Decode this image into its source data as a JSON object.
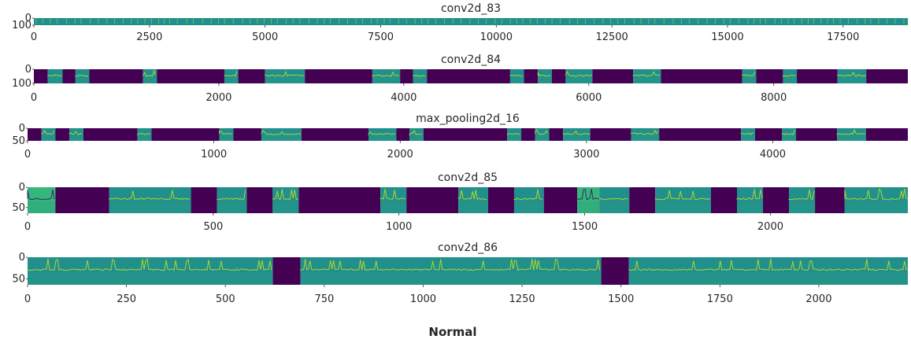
{
  "figure_label": "Normal",
  "colors": {
    "dark": "#440154",
    "teal": "#21908d",
    "green": "#35b779",
    "yellow": "#d6e62a",
    "text": "#262626"
  },
  "chart_data": [
    {
      "type": "heatmap",
      "title": "conv2d_83",
      "xlim": [
        0,
        18900
      ],
      "xticks": [
        0,
        2500,
        5000,
        7500,
        10000,
        12500,
        15000,
        17500
      ],
      "xtick_labels": [
        "0",
        "2500",
        "5000",
        "7500",
        "10000",
        "12500",
        "15000",
        "17500"
      ],
      "ylim": [
        100,
        0
      ],
      "yticks": [
        0,
        100
      ],
      "ytick_labels": [
        "0",
        "100"
      ],
      "segments": [
        [
          0,
          18900,
          "teal"
        ]
      ],
      "colormap": "viridis"
    },
    {
      "type": "heatmap",
      "title": "conv2d_84",
      "xlim": [
        0,
        9450
      ],
      "xticks": [
        0,
        2000,
        4000,
        6000,
        8000
      ],
      "xtick_labels": [
        "0",
        "2000",
        "4000",
        "6000",
        "8000"
      ],
      "ylim": [
        100,
        0
      ],
      "yticks": [
        0,
        100
      ],
      "ytick_labels": [
        "0",
        "100"
      ],
      "segments": [
        [
          0,
          150,
          "dark"
        ],
        [
          150,
          310,
          "teal"
        ],
        [
          310,
          450,
          "dark"
        ],
        [
          450,
          600,
          "teal"
        ],
        [
          600,
          1180,
          "dark"
        ],
        [
          1180,
          1330,
          "teal"
        ],
        [
          1330,
          2060,
          "dark"
        ],
        [
          2060,
          2210,
          "teal"
        ],
        [
          2210,
          2500,
          "dark"
        ],
        [
          2500,
          2930,
          "teal"
        ],
        [
          2930,
          3660,
          "dark"
        ],
        [
          3660,
          3960,
          "teal"
        ],
        [
          3960,
          4100,
          "dark"
        ],
        [
          4100,
          4250,
          "teal"
        ],
        [
          4250,
          5150,
          "dark"
        ],
        [
          5150,
          5300,
          "teal"
        ],
        [
          5300,
          5450,
          "dark"
        ],
        [
          5450,
          5600,
          "teal"
        ],
        [
          5600,
          5750,
          "dark"
        ],
        [
          5750,
          6040,
          "teal"
        ],
        [
          6040,
          6480,
          "dark"
        ],
        [
          6480,
          6780,
          "teal"
        ],
        [
          6780,
          7660,
          "dark"
        ],
        [
          7660,
          7810,
          "teal"
        ],
        [
          7810,
          8100,
          "dark"
        ],
        [
          8100,
          8250,
          "teal"
        ],
        [
          8250,
          8690,
          "dark"
        ],
        [
          8690,
          9000,
          "teal"
        ],
        [
          9000,
          9450,
          "dark"
        ]
      ],
      "colormap": "viridis"
    },
    {
      "type": "heatmap",
      "title": "max_pooling2d_16",
      "xlim": [
        0,
        4725
      ],
      "xticks": [
        0,
        1000,
        2000,
        3000,
        4000
      ],
      "xtick_labels": [
        "0",
        "1000",
        "2000",
        "3000",
        "4000"
      ],
      "ylim": [
        50,
        0
      ],
      "yticks": [
        0,
        50
      ],
      "ytick_labels": [
        "0",
        "50"
      ],
      "segments": [
        [
          0,
          75,
          "dark"
        ],
        [
          75,
          150,
          "teal"
        ],
        [
          150,
          225,
          "dark"
        ],
        [
          225,
          300,
          "teal"
        ],
        [
          300,
          590,
          "dark"
        ],
        [
          590,
          665,
          "teal"
        ],
        [
          665,
          1030,
          "dark"
        ],
        [
          1030,
          1105,
          "teal"
        ],
        [
          1105,
          1255,
          "dark"
        ],
        [
          1255,
          1470,
          "teal"
        ],
        [
          1470,
          1830,
          "dark"
        ],
        [
          1830,
          1980,
          "teal"
        ],
        [
          1980,
          2050,
          "dark"
        ],
        [
          2050,
          2125,
          "teal"
        ],
        [
          2125,
          2575,
          "dark"
        ],
        [
          2575,
          2650,
          "teal"
        ],
        [
          2650,
          2725,
          "dark"
        ],
        [
          2725,
          2800,
          "teal"
        ],
        [
          2800,
          2875,
          "dark"
        ],
        [
          2875,
          3020,
          "teal"
        ],
        [
          3020,
          3240,
          "dark"
        ],
        [
          3240,
          3390,
          "teal"
        ],
        [
          3390,
          3830,
          "dark"
        ],
        [
          3830,
          3905,
          "teal"
        ],
        [
          3905,
          4050,
          "dark"
        ],
        [
          4050,
          4125,
          "teal"
        ],
        [
          4125,
          4345,
          "dark"
        ],
        [
          4345,
          4500,
          "teal"
        ],
        [
          4500,
          4725,
          "dark"
        ]
      ],
      "colormap": "viridis"
    },
    {
      "type": "heatmap",
      "title": "conv2d_85",
      "xlim": [
        0,
        2370
      ],
      "xticks": [
        0,
        500,
        1000,
        1500,
        2000
      ],
      "xtick_labels": [
        "0",
        "500",
        "1000",
        "1500",
        "2000"
      ],
      "ylim": [
        64,
        0
      ],
      "yticks": [
        0,
        50
      ],
      "ytick_labels": [
        "0",
        "50"
      ],
      "segments": [
        [
          0,
          75,
          "green"
        ],
        [
          75,
          220,
          "dark"
        ],
        [
          220,
          440,
          "teal"
        ],
        [
          440,
          510,
          "dark"
        ],
        [
          510,
          590,
          "teal"
        ],
        [
          590,
          660,
          "dark"
        ],
        [
          660,
          730,
          "teal"
        ],
        [
          730,
          950,
          "dark"
        ],
        [
          950,
          1020,
          "teal"
        ],
        [
          1020,
          1160,
          "dark"
        ],
        [
          1160,
          1240,
          "teal"
        ],
        [
          1240,
          1310,
          "dark"
        ],
        [
          1310,
          1390,
          "teal"
        ],
        [
          1390,
          1480,
          "dark"
        ],
        [
          1480,
          1540,
          "green"
        ],
        [
          1540,
          1620,
          "teal"
        ],
        [
          1620,
          1690,
          "dark"
        ],
        [
          1690,
          1840,
          "teal"
        ],
        [
          1840,
          1910,
          "dark"
        ],
        [
          1910,
          1980,
          "teal"
        ],
        [
          1980,
          2050,
          "dark"
        ],
        [
          2050,
          2120,
          "teal"
        ],
        [
          2120,
          2200,
          "dark"
        ],
        [
          2200,
          2370,
          "teal"
        ]
      ],
      "colormap": "viridis"
    },
    {
      "type": "heatmap",
      "title": "conv2d_86",
      "xlim": [
        0,
        2225
      ],
      "xticks": [
        0,
        250,
        500,
        750,
        1000,
        1250,
        1500,
        1750,
        2000
      ],
      "xtick_labels": [
        "0",
        "250",
        "500",
        "750",
        "1000",
        "1250",
        "1500",
        "1750",
        "2000"
      ],
      "ylim": [
        64,
        0
      ],
      "yticks": [
        0,
        50
      ],
      "ytick_labels": [
        "0",
        "50"
      ],
      "segments": [
        [
          0,
          620,
          "teal"
        ],
        [
          620,
          690,
          "dark"
        ],
        [
          690,
          1450,
          "teal"
        ],
        [
          1450,
          1520,
          "dark"
        ],
        [
          1520,
          2225,
          "teal"
        ]
      ],
      "colormap": "viridis"
    }
  ]
}
